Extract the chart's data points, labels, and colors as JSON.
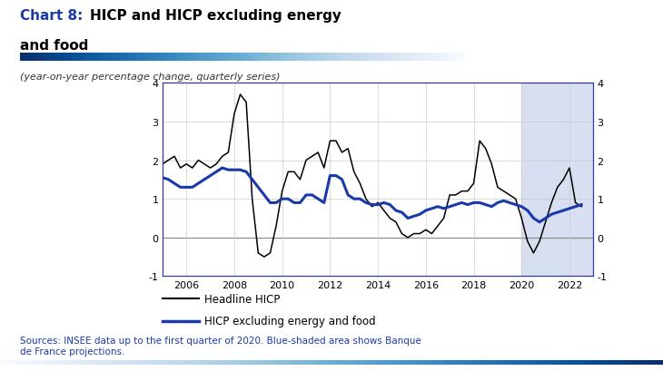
{
  "title_prefix": "Chart 8: ",
  "title_rest_line1": "HICP and HICP excluding energy",
  "title_rest_line2": "and food",
  "subtitle": "(year-on-year percentage change, quarterly series)",
  "source_text": "Sources: INSEE data up to the first quarter of 2020. Blue-shaded area shows Banque\nde France projections.",
  "ylim": [
    -1,
    4
  ],
  "yticks": [
    -1,
    0,
    1,
    2,
    3,
    4
  ],
  "xlabel_years": [
    2006,
    2008,
    2010,
    2012,
    2014,
    2016,
    2018,
    2020,
    2022
  ],
  "xmin": 2005.0,
  "xmax": 2023.0,
  "projection_start": 2020.0,
  "projection_end": 2023.0,
  "headline_color": "#000000",
  "excluding_color": "#1a3aaa",
  "projection_shade": "#d8dff0",
  "title_color_chart": "#1a3aaa",
  "source_color": "#1a3aaa",
  "spine_color": "#3333aa",
  "grid_color": "#cccccc",
  "legend_line1": "Headline HICP",
  "legend_line2": "HICP excluding energy and food",
  "headline_hicp_x": [
    2005.0,
    2005.25,
    2005.5,
    2005.75,
    2006.0,
    2006.25,
    2006.5,
    2006.75,
    2007.0,
    2007.25,
    2007.5,
    2007.75,
    2008.0,
    2008.25,
    2008.5,
    2008.75,
    2009.0,
    2009.25,
    2009.5,
    2009.75,
    2010.0,
    2010.25,
    2010.5,
    2010.75,
    2011.0,
    2011.25,
    2011.5,
    2011.75,
    2012.0,
    2012.25,
    2012.5,
    2012.75,
    2013.0,
    2013.25,
    2013.5,
    2013.75,
    2014.0,
    2014.25,
    2014.5,
    2014.75,
    2015.0,
    2015.25,
    2015.5,
    2015.75,
    2016.0,
    2016.25,
    2016.5,
    2016.75,
    2017.0,
    2017.25,
    2017.5,
    2017.75,
    2018.0,
    2018.25,
    2018.5,
    2018.75,
    2019.0,
    2019.25,
    2019.5,
    2019.75,
    2020.0,
    2020.25,
    2020.5,
    2020.75,
    2021.0,
    2021.25,
    2021.5,
    2021.75,
    2022.0,
    2022.25,
    2022.5
  ],
  "headline_hicp_y": [
    1.9,
    2.0,
    2.1,
    1.8,
    1.9,
    1.8,
    2.0,
    1.9,
    1.8,
    1.9,
    2.1,
    2.2,
    3.2,
    3.7,
    3.5,
    1.0,
    -0.4,
    -0.5,
    -0.4,
    0.3,
    1.2,
    1.7,
    1.7,
    1.5,
    2.0,
    2.1,
    2.2,
    1.8,
    2.5,
    2.5,
    2.2,
    2.3,
    1.7,
    1.4,
    1.0,
    0.8,
    0.9,
    0.7,
    0.5,
    0.4,
    0.1,
    0.0,
    0.1,
    0.1,
    0.2,
    0.1,
    0.3,
    0.5,
    1.1,
    1.1,
    1.2,
    1.2,
    1.4,
    2.5,
    2.3,
    1.9,
    1.3,
    1.2,
    1.1,
    1.0,
    0.5,
    -0.1,
    -0.4,
    -0.1,
    0.4,
    0.9,
    1.3,
    1.5,
    1.8,
    0.9,
    0.8
  ],
  "hicp_ex_x": [
    2005.0,
    2005.25,
    2005.5,
    2005.75,
    2006.0,
    2006.25,
    2006.5,
    2006.75,
    2007.0,
    2007.25,
    2007.5,
    2007.75,
    2008.0,
    2008.25,
    2008.5,
    2008.75,
    2009.0,
    2009.25,
    2009.5,
    2009.75,
    2010.0,
    2010.25,
    2010.5,
    2010.75,
    2011.0,
    2011.25,
    2011.5,
    2011.75,
    2012.0,
    2012.25,
    2012.5,
    2012.75,
    2013.0,
    2013.25,
    2013.5,
    2013.75,
    2014.0,
    2014.25,
    2014.5,
    2014.75,
    2015.0,
    2015.25,
    2015.5,
    2015.75,
    2016.0,
    2016.25,
    2016.5,
    2016.75,
    2017.0,
    2017.25,
    2017.5,
    2017.75,
    2018.0,
    2018.25,
    2018.5,
    2018.75,
    2019.0,
    2019.25,
    2019.5,
    2019.75,
    2020.0,
    2020.25,
    2020.5,
    2020.75,
    2021.0,
    2021.25,
    2021.5,
    2021.75,
    2022.0,
    2022.25,
    2022.5
  ],
  "hicp_ex_y": [
    1.55,
    1.5,
    1.4,
    1.3,
    1.3,
    1.3,
    1.4,
    1.5,
    1.6,
    1.7,
    1.8,
    1.75,
    1.75,
    1.75,
    1.7,
    1.5,
    1.3,
    1.1,
    0.9,
    0.9,
    1.0,
    1.0,
    0.9,
    0.9,
    1.1,
    1.1,
    1.0,
    0.9,
    1.6,
    1.6,
    1.5,
    1.1,
    1.0,
    1.0,
    0.9,
    0.85,
    0.85,
    0.9,
    0.85,
    0.7,
    0.65,
    0.5,
    0.55,
    0.6,
    0.7,
    0.75,
    0.8,
    0.75,
    0.8,
    0.85,
    0.9,
    0.85,
    0.9,
    0.9,
    0.85,
    0.8,
    0.9,
    0.95,
    0.9,
    0.85,
    0.8,
    0.7,
    0.5,
    0.4,
    0.5,
    0.6,
    0.65,
    0.7,
    0.75,
    0.8,
    0.85
  ]
}
